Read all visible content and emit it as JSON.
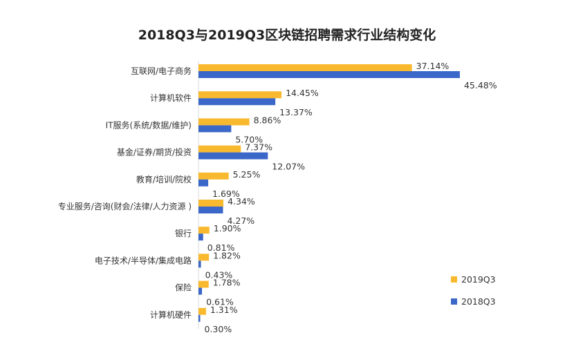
{
  "chart_data": {
    "type": "bar",
    "orientation": "horizontal",
    "title": "2018Q3与2019Q3区块链招聘需求行业结构变化",
    "categories": [
      "互联网/电子商务",
      "计算机软件",
      "IT服务(系统/数据/维护)",
      "基金/证券/期货/投资",
      "教育/培训/院校",
      "专业服务/咨询(财会/法律/人力资源 )",
      "银行",
      "电子技术/半导体/集成电路",
      "保险",
      "计算机硬件"
    ],
    "series": [
      {
        "name": "2019Q3",
        "color": "#F9B92E",
        "values": [
          37.14,
          14.45,
          8.86,
          7.37,
          5.25,
          4.34,
          1.9,
          1.82,
          1.78,
          1.31
        ],
        "labels": [
          "37.14%",
          "14.45%",
          "8.86%",
          "7.37%",
          "5.25%",
          "4.34%",
          "1.90%",
          "1.82%",
          "1.78%",
          "1.31%"
        ]
      },
      {
        "name": "2018Q3",
        "color": "#3A67C8",
        "values": [
          45.48,
          13.37,
          5.7,
          12.07,
          1.69,
          4.27,
          0.81,
          0.43,
          0.61,
          0.3
        ],
        "labels": [
          "45.48%",
          "13.37%",
          "5.70%",
          "12.07%",
          "1.69%",
          "4.27%",
          "0.81%",
          "0.43%",
          "0.61%",
          "0.30%"
        ]
      }
    ],
    "legend_position": "bottom-right",
    "grid": false
  }
}
